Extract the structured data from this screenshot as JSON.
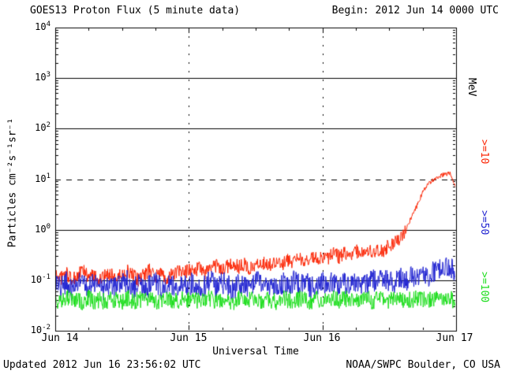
{
  "header": {
    "title": "GOES13 Proton Flux (5 minute data)",
    "begin": "Begin: 2012 Jun 14 0000 UTC"
  },
  "axes": {
    "ylabel": "Particles cm⁻²s⁻¹sr⁻¹",
    "xlabel": "Universal Time",
    "right_unit": "MeV"
  },
  "footer": {
    "updated": "Updated 2012 Jun 16 23:56:02 UTC",
    "credit": "NOAA/SWPC Boulder, CO USA"
  },
  "chart_data": {
    "type": "line",
    "title": "GOES13 Proton Flux (5 minute data)",
    "xlabel": "Universal Time",
    "ylabel": "Particles cm^-2 s^-1 sr^-1",
    "x_start": "2012 Jun 14 0000 UTC",
    "x_end": "2012 Jun 16 23:55 UTC",
    "hours_total": 72,
    "xticks": [
      "Jun 14",
      "Jun 15",
      "Jun 16",
      "Jun 17"
    ],
    "ytick_exponents": [
      4,
      3,
      2,
      1,
      0,
      -1,
      -2
    ],
    "ylim_log": [
      -2,
      4
    ],
    "grid": {
      "h_solid_exponents": [
        3,
        2,
        0,
        -1
      ],
      "h_dashed_exponents": [
        1
      ],
      "v_dotted_hours": [
        24,
        48
      ]
    },
    "series": [
      {
        "name": ">=10 MeV proton flux",
        "label": ">=10",
        "color": "#fb2504",
        "noise_decades": 0.14,
        "hourly": [
          0.13,
          0.11,
          0.14,
          0.1,
          0.12,
          0.16,
          0.11,
          0.13,
          0.1,
          0.12,
          0.14,
          0.11,
          0.13,
          0.15,
          0.12,
          0.1,
          0.13,
          0.16,
          0.12,
          0.14,
          0.11,
          0.13,
          0.15,
          0.14,
          0.16,
          0.15,
          0.18,
          0.14,
          0.17,
          0.2,
          0.16,
          0.19,
          0.22,
          0.18,
          0.21,
          0.17,
          0.2,
          0.24,
          0.19,
          0.22,
          0.26,
          0.21,
          0.25,
          0.23,
          0.27,
          0.24,
          0.28,
          0.26,
          0.3,
          0.28,
          0.33,
          0.29,
          0.35,
          0.31,
          0.38,
          0.34,
          0.4,
          0.36,
          0.42,
          0.38,
          0.5,
          0.55,
          0.7,
          1.0,
          1.8,
          3.0,
          5.5,
          8.0,
          10.0,
          11.5,
          12.5,
          13.0,
          6.5
        ]
      },
      {
        "name": ">=50 MeV proton flux",
        "label": ">=50",
        "color": "#2124d1",
        "noise_decades": 0.22,
        "hourly": [
          0.08,
          0.07,
          0.09,
          0.06,
          0.08,
          0.1,
          0.07,
          0.09,
          0.08,
          0.06,
          0.09,
          0.07,
          0.08,
          0.1,
          0.07,
          0.09,
          0.06,
          0.08,
          0.1,
          0.07,
          0.09,
          0.08,
          0.07,
          0.09,
          0.08,
          0.09,
          0.07,
          0.08,
          0.1,
          0.07,
          0.09,
          0.08,
          0.06,
          0.09,
          0.08,
          0.07,
          0.1,
          0.08,
          0.09,
          0.07,
          0.08,
          0.09,
          0.07,
          0.1,
          0.08,
          0.09,
          0.07,
          0.08,
          0.09,
          0.08,
          0.1,
          0.07,
          0.09,
          0.08,
          0.1,
          0.09,
          0.08,
          0.1,
          0.09,
          0.11,
          0.1,
          0.09,
          0.11,
          0.1,
          0.12,
          0.11,
          0.13,
          0.12,
          0.15,
          0.17,
          0.2,
          0.18,
          0.15
        ]
      },
      {
        "name": ">=100 MeV proton flux",
        "label": ">=100",
        "color": "#1bdd1b",
        "noise_decades": 0.17,
        "hourly": [
          0.04,
          0.035,
          0.045,
          0.038,
          0.042,
          0.036,
          0.044,
          0.039,
          0.041,
          0.037,
          0.043,
          0.04,
          0.038,
          0.045,
          0.036,
          0.042,
          0.039,
          0.044,
          0.037,
          0.041,
          0.043,
          0.038,
          0.04,
          0.042,
          0.039,
          0.043,
          0.037,
          0.041,
          0.044,
          0.038,
          0.042,
          0.04,
          0.036,
          0.043,
          0.039,
          0.041,
          0.044,
          0.038,
          0.042,
          0.04,
          0.037,
          0.043,
          0.041,
          0.039,
          0.044,
          0.04,
          0.038,
          0.042,
          0.041,
          0.039,
          0.043,
          0.04,
          0.044,
          0.038,
          0.042,
          0.04,
          0.043,
          0.039,
          0.041,
          0.044,
          0.04,
          0.042,
          0.039,
          0.043,
          0.041,
          0.044,
          0.04,
          0.042,
          0.043,
          0.041,
          0.044,
          0.042,
          0.04
        ]
      }
    ]
  }
}
